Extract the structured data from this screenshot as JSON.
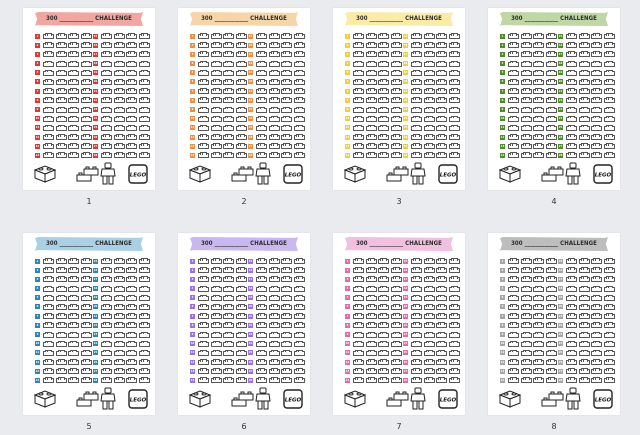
{
  "banner_text": "300 ____________ CHALLENGE",
  "logo_text": "LEGO",
  "pages": [
    {
      "caption": "1",
      "banner_color": "#f2a6a2",
      "num_color": "#d93a34"
    },
    {
      "caption": "2",
      "banner_color": "#f6d6a8",
      "num_color": "#e4914a"
    },
    {
      "caption": "3",
      "banner_color": "#faeca6",
      "num_color": "#f1cf3a"
    },
    {
      "caption": "4",
      "banner_color": "#bfd7a4",
      "num_color": "#4f8a2b"
    },
    {
      "caption": "5",
      "banner_color": "#a9d0e4",
      "num_color": "#2f86b4"
    },
    {
      "caption": "6",
      "banner_color": "#c9b8ee",
      "num_color": "#9b72d9"
    },
    {
      "caption": "7",
      "banner_color": "#f2bfdf",
      "num_color": "#e069b4"
    },
    {
      "caption": "8",
      "banner_color": "#bdbdbd",
      "num_color": "#a5a5a5"
    }
  ]
}
